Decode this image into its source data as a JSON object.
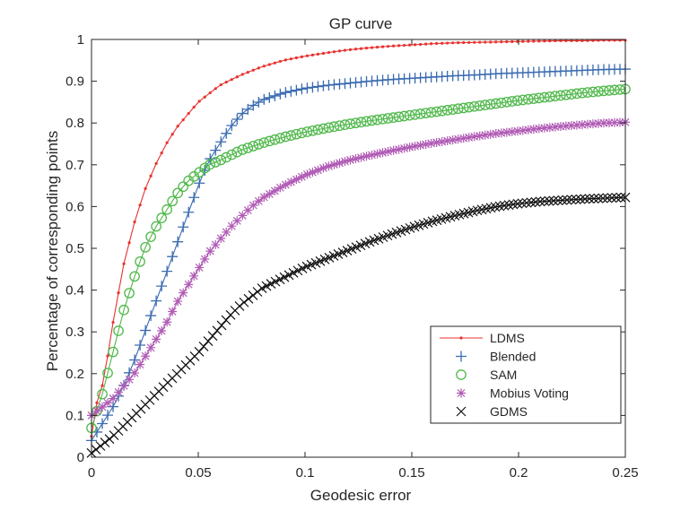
{
  "chart_data": {
    "type": "line",
    "title": "GP curve",
    "xlabel": "Geodesic error",
    "ylabel": "Percentage of corresponding points",
    "xlim": [
      0,
      0.25
    ],
    "ylim": [
      0,
      1
    ],
    "x_ticks": [
      0,
      0.05,
      0.1,
      0.15,
      0.2,
      0.25
    ],
    "x_tick_labels": [
      "0",
      "0.05",
      "0.1",
      "0.15",
      "0.2",
      "0.25"
    ],
    "y_ticks": [
      0,
      0.1,
      0.2,
      0.3,
      0.4,
      0.5,
      0.6,
      0.7,
      0.8,
      0.9,
      1
    ],
    "y_tick_labels": [
      "0",
      "0.1",
      "0.2",
      "0.3",
      "0.4",
      "0.5",
      "0.6",
      "0.7",
      "0.8",
      "0.9",
      "1"
    ],
    "grid": false,
    "legend_position": "bottom-right",
    "series": [
      {
        "name": "LDMS",
        "color": "#e8322f",
        "marker": "dot",
        "x": [
          0,
          0.0025,
          0.005,
          0.0075,
          0.01,
          0.0125,
          0.015,
          0.02,
          0.025,
          0.03,
          0.035,
          0.04,
          0.05,
          0.06,
          0.07,
          0.08,
          0.09,
          0.1,
          0.11,
          0.12,
          0.13,
          0.14,
          0.15,
          0.16,
          0.17,
          0.18,
          0.19,
          0.2,
          0.21,
          0.22,
          0.23,
          0.24,
          0.25
        ],
        "y": [
          0.05,
          0.13,
          0.17,
          0.24,
          0.32,
          0.39,
          0.46,
          0.56,
          0.64,
          0.7,
          0.75,
          0.79,
          0.85,
          0.89,
          0.915,
          0.935,
          0.95,
          0.96,
          0.968,
          0.975,
          0.98,
          0.984,
          0.987,
          0.99,
          0.992,
          0.993,
          0.994,
          0.995,
          0.996,
          0.997,
          0.997,
          0.998,
          0.998
        ]
      },
      {
        "name": "Blended",
        "color": "#3a6bb0",
        "marker": "plus",
        "x": [
          0,
          0.005,
          0.01,
          0.015,
          0.02,
          0.025,
          0.03,
          0.035,
          0.04,
          0.045,
          0.05,
          0.055,
          0.06,
          0.065,
          0.07,
          0.075,
          0.08,
          0.09,
          0.1,
          0.11,
          0.12,
          0.13,
          0.14,
          0.15,
          0.16,
          0.17,
          0.18,
          0.19,
          0.2,
          0.21,
          0.22,
          0.23,
          0.24,
          0.25
        ],
        "y": [
          0.04,
          0.08,
          0.12,
          0.17,
          0.23,
          0.3,
          0.37,
          0.44,
          0.51,
          0.58,
          0.65,
          0.71,
          0.75,
          0.79,
          0.82,
          0.84,
          0.855,
          0.872,
          0.883,
          0.89,
          0.895,
          0.9,
          0.904,
          0.907,
          0.91,
          0.913,
          0.915,
          0.918,
          0.92,
          0.922,
          0.924,
          0.926,
          0.928,
          0.929
        ]
      },
      {
        "name": "SAM",
        "color": "#4fb84a",
        "marker": "circle",
        "x": [
          0,
          0.005,
          0.01,
          0.015,
          0.02,
          0.025,
          0.03,
          0.035,
          0.04,
          0.045,
          0.05,
          0.055,
          0.06,
          0.07,
          0.08,
          0.09,
          0.1,
          0.11,
          0.12,
          0.13,
          0.14,
          0.15,
          0.16,
          0.17,
          0.18,
          0.19,
          0.2,
          0.21,
          0.22,
          0.23,
          0.24,
          0.25
        ],
        "y": [
          0.07,
          0.15,
          0.25,
          0.35,
          0.43,
          0.5,
          0.55,
          0.59,
          0.63,
          0.66,
          0.68,
          0.7,
          0.71,
          0.735,
          0.752,
          0.766,
          0.778,
          0.788,
          0.797,
          0.805,
          0.812,
          0.819,
          0.826,
          0.833,
          0.84,
          0.847,
          0.854,
          0.86,
          0.866,
          0.872,
          0.877,
          0.881
        ]
      },
      {
        "name": "Mobius Voting",
        "color": "#b05bb5",
        "marker": "asterisk",
        "x": [
          0,
          0.005,
          0.01,
          0.015,
          0.02,
          0.025,
          0.03,
          0.035,
          0.04,
          0.045,
          0.05,
          0.055,
          0.06,
          0.065,
          0.07,
          0.075,
          0.08,
          0.09,
          0.1,
          0.11,
          0.12,
          0.13,
          0.14,
          0.15,
          0.16,
          0.17,
          0.18,
          0.19,
          0.2,
          0.21,
          0.22,
          0.23,
          0.24,
          0.25
        ],
        "y": [
          0.1,
          0.12,
          0.14,
          0.17,
          0.2,
          0.24,
          0.28,
          0.32,
          0.37,
          0.41,
          0.45,
          0.49,
          0.52,
          0.55,
          0.575,
          0.6,
          0.62,
          0.65,
          0.675,
          0.695,
          0.71,
          0.722,
          0.733,
          0.743,
          0.752,
          0.76,
          0.768,
          0.775,
          0.781,
          0.787,
          0.792,
          0.796,
          0.8,
          0.802
        ]
      },
      {
        "name": "GDMS",
        "color": "#111111",
        "marker": "cross",
        "x": [
          0,
          0.005,
          0.01,
          0.015,
          0.02,
          0.025,
          0.03,
          0.035,
          0.04,
          0.045,
          0.05,
          0.055,
          0.06,
          0.065,
          0.07,
          0.075,
          0.08,
          0.09,
          0.1,
          0.11,
          0.12,
          0.13,
          0.14,
          0.15,
          0.16,
          0.17,
          0.18,
          0.19,
          0.2,
          0.21,
          0.22,
          0.23,
          0.24,
          0.25
        ],
        "y": [
          0.01,
          0.03,
          0.05,
          0.075,
          0.1,
          0.125,
          0.15,
          0.175,
          0.2,
          0.225,
          0.25,
          0.28,
          0.31,
          0.34,
          0.365,
          0.385,
          0.405,
          0.43,
          0.455,
          0.475,
          0.495,
          0.515,
          0.533,
          0.55,
          0.565,
          0.578,
          0.59,
          0.6,
          0.607,
          0.612,
          0.615,
          0.618,
          0.62,
          0.622
        ]
      }
    ]
  }
}
